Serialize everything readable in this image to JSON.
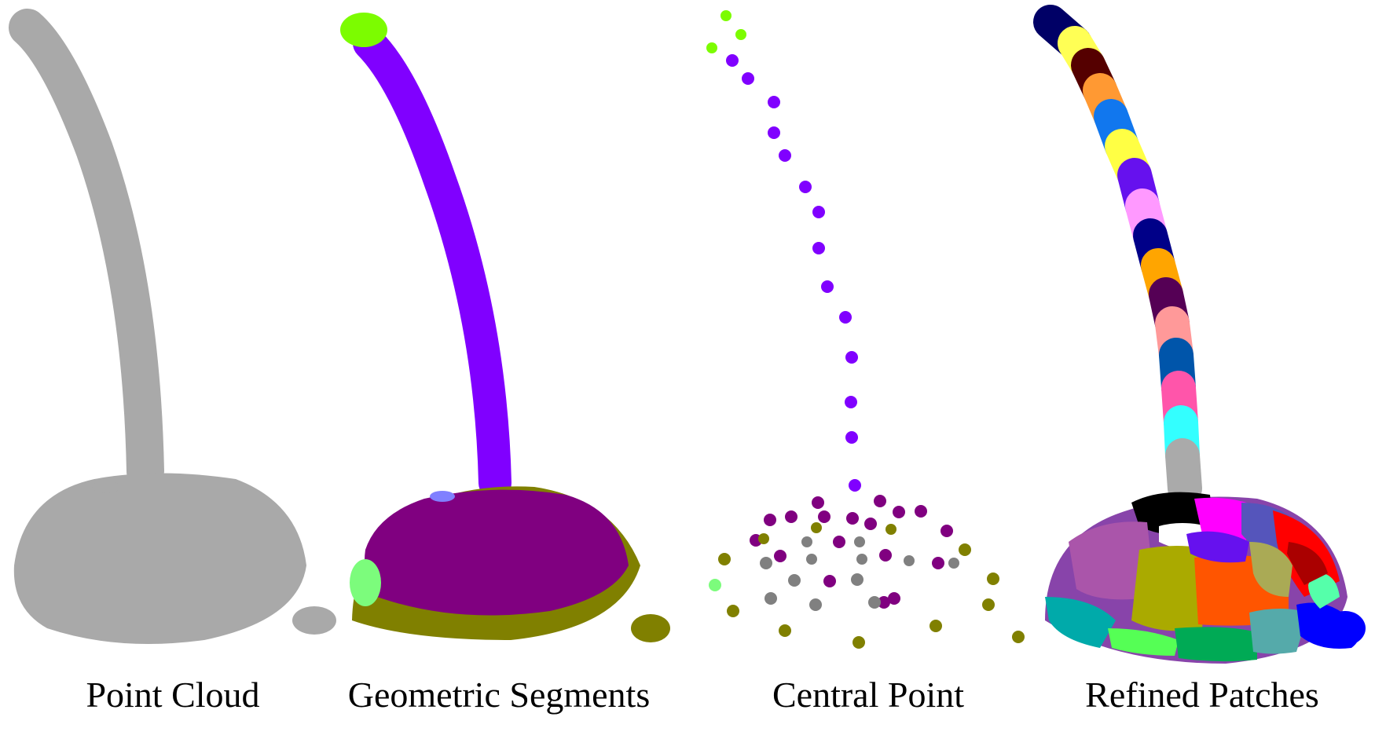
{
  "labels": {
    "point_cloud": "Point Cloud",
    "geometric_segments": "Geometric Segments",
    "central_point": "Central Point",
    "refined_patches": "Refined Patches"
  },
  "colors": {
    "gray": "#a9a9a9",
    "light_green": "#7cfc00",
    "violet": "#8000ff",
    "purple": "#800080",
    "olive": "#808000",
    "pale_green": "#7cfc7c",
    "lavender": "#8080ff",
    "mid_gray": "#808080"
  },
  "refined_patch_colors": {
    "stem": [
      "#000066",
      "#ffff55",
      "#550000",
      "#ff9933",
      "#1177ee",
      "#ffff44",
      "#6611ee",
      "#ff99ff",
      "#000088",
      "#ffa500",
      "#550055",
      "#ff9999",
      "#0055aa",
      "#ff55aa",
      "#33ffff",
      "#aaaaaa"
    ],
    "dome": [
      "#000000",
      "#ffffff",
      "#ff00ff",
      "#5555bb",
      "#ff0000",
      "#aa55aa",
      "#aaaa00",
      "#ff5500",
      "#6611ee",
      "#00aaaa",
      "#55ff55",
      "#00aa55",
      "#55aaaa",
      "#0000ff",
      "#55ffaa",
      "#aa0000",
      "#aaaa55"
    ]
  }
}
